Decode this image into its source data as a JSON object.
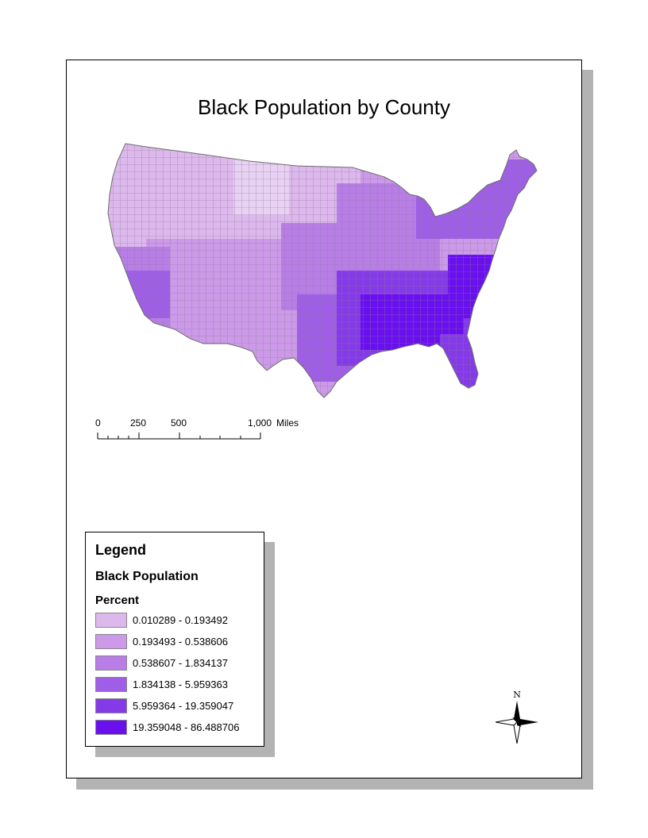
{
  "map": {
    "title": "Black Population by County"
  },
  "scalebar": {
    "labels": [
      "0",
      "250",
      "500",
      "1,000"
    ],
    "unit": "Miles"
  },
  "legend": {
    "title": "Legend",
    "layer": "Black Population",
    "field": "Percent",
    "classes": [
      {
        "label": "0.010289 - 0.193492",
        "color": "#dcb8ec"
      },
      {
        "label": "0.193493 - 0.538606",
        "color": "#cc9ae8"
      },
      {
        "label": "0.538607 - 1.834137",
        "color": "#b87ee6"
      },
      {
        "label": "1.834138 - 5.959363",
        "color": "#9f5ee6"
      },
      {
        "label": "5.959364 - 19.359047",
        "color": "#853ae8"
      },
      {
        "label": "19.359048 - 86.488706",
        "color": "#6a10ee"
      }
    ]
  },
  "north_arrow": {
    "label": "N"
  }
}
